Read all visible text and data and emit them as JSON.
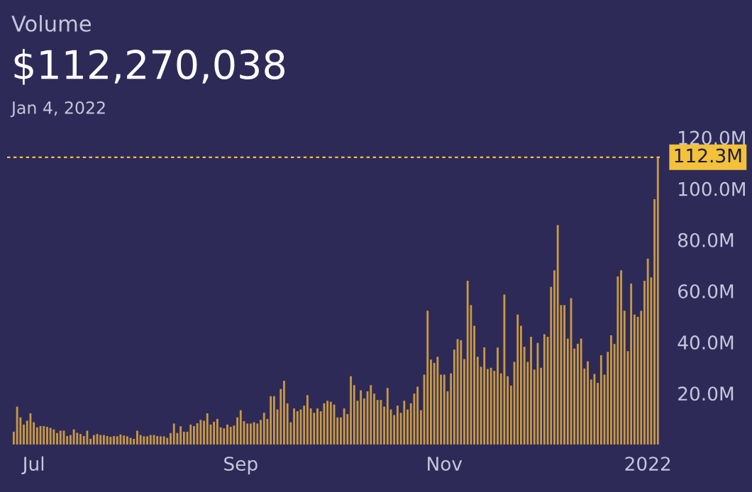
{
  "chart_data": {
    "type": "bar",
    "title": "Volume",
    "subtitle": "$112,270,038",
    "annotations": [
      "Jan 4, 2022"
    ],
    "color": "#c99a41",
    "x": [
      "2021-06-25",
      "2021-06-26",
      "2021-06-27",
      "2021-06-28",
      "2021-06-29",
      "2021-06-30",
      "2021-07-01",
      "2021-07-02",
      "2021-07-03",
      "2021-07-04",
      "2021-07-05",
      "2021-07-06",
      "2021-07-07",
      "2021-07-08",
      "2021-07-09",
      "2021-07-10",
      "2021-07-11",
      "2021-07-12",
      "2021-07-13",
      "2021-07-14",
      "2021-07-15",
      "2021-07-16",
      "2021-07-17",
      "2021-07-18",
      "2021-07-19",
      "2021-07-20",
      "2021-07-21",
      "2021-07-22",
      "2021-07-23",
      "2021-07-24",
      "2021-07-25",
      "2021-07-26",
      "2021-07-27",
      "2021-07-28",
      "2021-07-29",
      "2021-07-30",
      "2021-07-31",
      "2021-08-01",
      "2021-08-02",
      "2021-08-03",
      "2021-08-04",
      "2021-08-05",
      "2021-08-06",
      "2021-08-07",
      "2021-08-08",
      "2021-08-09",
      "2021-08-10",
      "2021-08-11",
      "2021-08-12",
      "2021-08-13",
      "2021-08-14",
      "2021-08-15",
      "2021-08-16",
      "2021-08-17",
      "2021-08-18",
      "2021-08-19",
      "2021-08-20",
      "2021-08-21",
      "2021-08-22",
      "2021-08-23",
      "2021-08-24",
      "2021-08-25",
      "2021-08-26",
      "2021-08-27",
      "2021-08-28",
      "2021-08-29",
      "2021-08-30",
      "2021-08-31",
      "2021-09-01",
      "2021-09-02",
      "2021-09-03",
      "2021-09-04",
      "2021-09-05",
      "2021-09-06",
      "2021-09-07",
      "2021-09-08",
      "2021-09-09",
      "2021-09-10",
      "2021-09-11",
      "2021-09-12",
      "2021-09-13",
      "2021-09-14",
      "2021-09-15",
      "2021-09-16",
      "2021-09-17",
      "2021-09-18",
      "2021-09-19",
      "2021-09-20",
      "2021-09-21",
      "2021-09-22",
      "2021-09-23",
      "2021-09-24",
      "2021-09-25",
      "2021-09-26",
      "2021-09-27",
      "2021-09-28",
      "2021-09-29",
      "2021-09-30",
      "2021-10-01",
      "2021-10-02",
      "2021-10-03",
      "2021-10-04",
      "2021-10-05",
      "2021-10-06",
      "2021-10-07",
      "2021-10-08",
      "2021-10-09",
      "2021-10-10",
      "2021-10-11",
      "2021-10-12",
      "2021-10-13",
      "2021-10-14",
      "2021-10-15",
      "2021-10-16",
      "2021-10-17",
      "2021-10-18",
      "2021-10-19",
      "2021-10-20",
      "2021-10-21",
      "2021-10-22",
      "2021-10-23",
      "2021-10-24",
      "2021-10-25",
      "2021-10-26",
      "2021-10-27",
      "2021-10-28",
      "2021-10-29",
      "2021-10-30",
      "2021-10-31",
      "2021-11-01",
      "2021-11-02",
      "2021-11-03",
      "2021-11-04",
      "2021-11-05",
      "2021-11-06",
      "2021-11-07",
      "2021-11-08",
      "2021-11-09",
      "2021-11-10",
      "2021-11-11",
      "2021-11-12",
      "2021-11-13",
      "2021-11-14",
      "2021-11-15",
      "2021-11-16",
      "2021-11-17",
      "2021-11-18",
      "2021-11-19",
      "2021-11-20",
      "2021-11-21",
      "2021-11-22",
      "2021-11-23",
      "2021-11-24",
      "2021-11-25",
      "2021-11-26",
      "2021-11-27",
      "2021-11-28",
      "2021-11-29",
      "2021-11-30",
      "2021-12-01",
      "2021-12-02",
      "2021-12-03",
      "2021-12-04",
      "2021-12-05",
      "2021-12-06",
      "2021-12-07",
      "2021-12-08",
      "2021-12-09",
      "2021-12-10",
      "2021-12-11",
      "2021-12-12",
      "2021-12-13",
      "2021-12-14",
      "2021-12-15",
      "2021-12-16",
      "2021-12-17",
      "2021-12-18",
      "2021-12-19",
      "2021-12-20",
      "2021-12-21",
      "2021-12-22",
      "2021-12-23",
      "2021-12-24",
      "2021-12-25",
      "2021-12-26",
      "2021-12-27",
      "2021-12-28",
      "2021-12-29",
      "2021-12-30",
      "2021-12-31",
      "2022-01-01",
      "2022-01-02",
      "2022-01-03",
      "2022-01-04"
    ],
    "values": [
      5,
      14.8,
      10.6,
      7.8,
      9.3,
      12.2,
      8.7,
      6.7,
      7.2,
      7.2,
      6.9,
      6.5,
      5.9,
      4.5,
      5.4,
      5.4,
      3.3,
      3.7,
      5.9,
      4.6,
      4.1,
      3.3,
      5.4,
      2.2,
      3.7,
      4.1,
      3.7,
      3.7,
      3.3,
      3,
      3.3,
      3.2,
      3.9,
      3.5,
      3.2,
      2.6,
      2.2,
      5.4,
      3.7,
      3.2,
      3.2,
      3.7,
      3.7,
      3.3,
      3.2,
      3.2,
      2.6,
      4.5,
      8.2,
      4.5,
      7.1,
      5,
      5,
      7.8,
      7.2,
      8.3,
      9.6,
      9.3,
      12.2,
      7.8,
      8.9,
      10,
      6.7,
      6.3,
      7.8,
      6.9,
      7.4,
      10.6,
      13.4,
      9.1,
      8.2,
      8.2,
      8.7,
      8.2,
      9.6,
      12.4,
      10,
      18.9,
      18.9,
      13.7,
      21.7,
      24.9,
      16.1,
      8.7,
      14.1,
      13,
      13.7,
      15.2,
      19.3,
      14.1,
      12.4,
      14.1,
      13,
      16.1,
      17.1,
      16.7,
      15.6,
      10.6,
      10.6,
      14.1,
      11.9,
      26.7,
      23.2,
      17.1,
      21.2,
      18,
      20.8,
      23.2,
      19.9,
      17.4,
      17.4,
      14.8,
      22.1,
      13.7,
      11.5,
      15.2,
      12.4,
      17.1,
      13.7,
      16.1,
      19.9,
      22.6,
      13.4,
      27.3,
      52.3,
      33.2,
      31.9,
      34.3,
      27.3,
      27.3,
      20.8,
      27.8,
      37.1,
      41.2,
      40.8,
      33.4,
      64,
      54.5,
      46.4,
      34.3,
      30.4,
      38,
      29.5,
      30,
      28.8,
      37.9,
      27.8,
      58.6,
      26.7,
      23,
      32.3,
      50.8,
      46.4,
      38.2,
      32.3,
      42.1,
      29.3,
      39.7,
      30,
      43.1,
      42.1,
      61.6,
      68.1,
      85.8,
      54.5,
      54.5,
      41.4,
      57.2,
      37.5,
      39.4,
      41.4,
      29.7,
      32.5,
      25.4,
      27.6,
      24.1,
      34.9,
      27.3,
      36.2,
      42.7,
      39.3,
      65.7,
      68.1,
      52.3,
      36.5,
      62.9,
      50.8,
      49.9,
      52.3,
      64,
      72.7,
      65.3,
      95.9,
      112.3
    ],
    "xlim": [
      "2021-06-23",
      "2022-01-05"
    ],
    "xticks": [
      {
        "value": "2021-07-01",
        "label": "Jul"
      },
      {
        "value": "2021-09-01",
        "label": "Sep"
      },
      {
        "value": "2021-11-01",
        "label": "Nov"
      },
      {
        "value": "2022-01-01",
        "label": "2022"
      }
    ],
    "ylim": [
      0,
      120
    ],
    "yticks": [
      {
        "value": 20,
        "label": "20.0M"
      },
      {
        "value": 40,
        "label": "40.0M"
      },
      {
        "value": 60,
        "label": "60.0M"
      },
      {
        "value": 80,
        "label": "80.0M"
      },
      {
        "value": 100,
        "label": "100.0M"
      },
      {
        "value": 120,
        "label": "120.0M"
      }
    ],
    "ref_lines": [
      {
        "axis": "y",
        "value": 112.3,
        "label": "112.3M",
        "color": "#f3c13a",
        "line_style": "dashed"
      }
    ],
    "grid": false,
    "legend": false
  }
}
